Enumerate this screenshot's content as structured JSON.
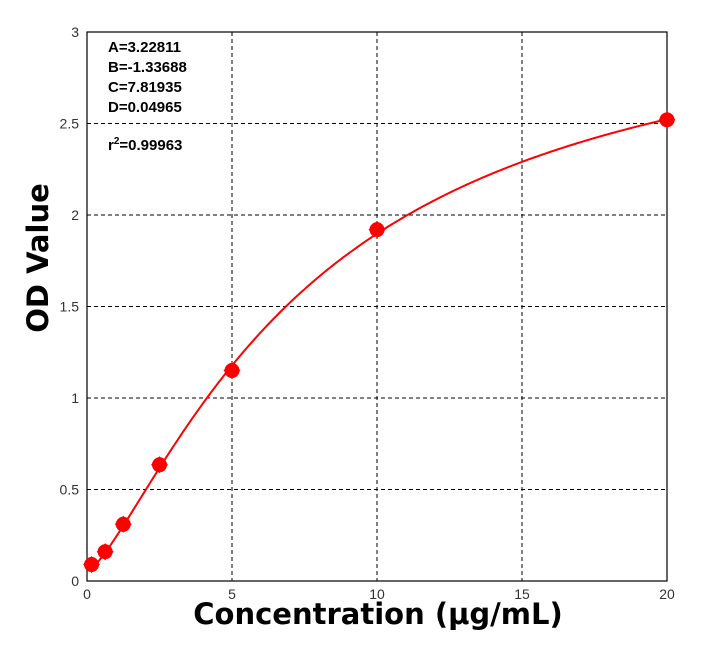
{
  "chart_data": {
    "type": "scatter",
    "xlabel": "Concentration (μg/mL)",
    "ylabel": "OD Value",
    "xlim": [
      0,
      20
    ],
    "ylim": [
      0,
      3
    ],
    "xticks": [
      "0",
      "5",
      "10",
      "15",
      "20"
    ],
    "yticks": [
      "0",
      "0.5",
      "1",
      "1.5",
      "2",
      "2.5",
      "3"
    ],
    "grid": true,
    "series": [
      {
        "x": [
          0.156,
          0.625,
          1.25,
          2.5,
          5,
          10,
          20
        ],
        "y": [
          0.09,
          0.16,
          0.31,
          0.635,
          1.15,
          1.92,
          2.52
        ],
        "color": "#ff0000",
        "fit": "4PL"
      }
    ],
    "fit_params": {
      "A": 3.22811,
      "B": -1.33688,
      "C": 7.81935,
      "D": 0.04965
    },
    "annotations": [
      "A=3.22811",
      "B=-1.33688",
      "C=7.81935",
      "D=0.04965",
      "r",
      "2",
      "=0.99963"
    ]
  }
}
